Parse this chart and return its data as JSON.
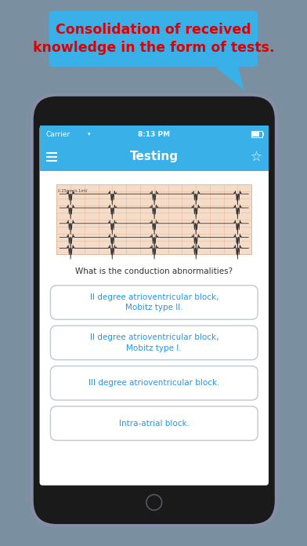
{
  "bg_color": "#7a8fa0",
  "phone_bg": "#1a1a1a",
  "phone_screen_bg": "#ffffff",
  "phone_border_color": "#888ea8",
  "status_bar_bg": "#3ab0e8",
  "nav_bar_bg": "#3ab0e8",
  "nav_title": "Testing",
  "nav_title_color": "#ffffff",
  "status_time": "8:13 PM",
  "status_carrier": "Carrier",
  "callout_bg": "#3ab0e8",
  "callout_text": "Consolidation of received\nknowledge in the form of tests.",
  "callout_text_color": "#e00000",
  "question_text": "What is the conduction abnormalities?",
  "question_color": "#333333",
  "answer_options": [
    "II degree atrioventricular block,\nMobitz type II.",
    "II degree atrioventricular block,\nMobitz type I.",
    "III degree atrioventricular block.",
    "Intra-atrial block."
  ],
  "answer_text_color": "#2196f3",
  "answer_border_color": "#c0c8d0",
  "answer_bg_color": "#ffffff",
  "ecg_bg": "#f5dcc8",
  "ecg_grid_color": "#e8b89a",
  "ecg_line_color": "#333333"
}
